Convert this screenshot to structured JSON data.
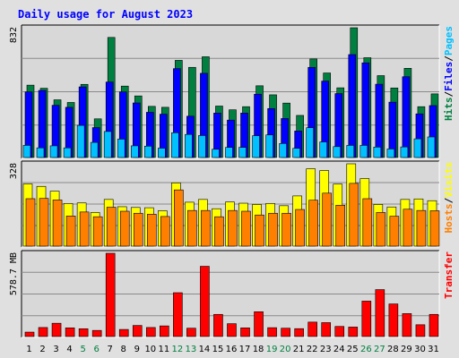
{
  "chart_data": {
    "title": "Daily usage for August 2023",
    "type": "bar",
    "categories": [
      "1",
      "2",
      "3",
      "4",
      "5",
      "6",
      "7",
      "8",
      "9",
      "10",
      "11",
      "12",
      "13",
      "14",
      "15",
      "16",
      "17",
      "18",
      "19",
      "20",
      "21",
      "22",
      "23",
      "24",
      "25",
      "26",
      "27",
      "28",
      "29",
      "30",
      "31"
    ],
    "weekend_days": [
      "5",
      "6",
      "12",
      "13",
      "19",
      "20",
      "26",
      "27"
    ],
    "panels": [
      {
        "id": "hits-files-pages",
        "ymax": 832,
        "ymax_label": "832",
        "side_label": {
          "parts": [
            {
              "text": "Hits",
              "color": "#008040"
            },
            {
              "text": "/",
              "color": "#000000"
            },
            {
              "text": "Files",
              "color": "#0000ff"
            },
            {
              "text": "/",
              "color": "#000000"
            },
            {
              "text": "Pages",
              "color": "#00c0ff"
            }
          ]
        },
        "series": [
          {
            "name": "Hits",
            "color": "#008040",
            "values": [
              464,
              444,
              370,
              353,
              469,
              248,
              770,
              458,
              395,
              328,
              322,
              623,
              578,
              646,
              330,
              306,
              326,
              460,
              402,
              349,
              270,
              632,
              542,
              447,
              832,
              640,
              525,
              446,
              572,
              326,
              408
            ]
          },
          {
            "name": "Files",
            "color": "#0000ff",
            "values": [
              421,
              430,
              335,
              322,
              453,
              192,
              484,
              421,
              350,
              290,
              278,
              570,
              265,
              540,
              285,
              240,
              285,
              406,
              314,
              250,
              170,
              578,
              490,
              410,
              660,
              607,
              470,
              355,
              518,
              280,
              333
            ]
          },
          {
            "name": "Pages",
            "color": "#00c0ff",
            "values": [
              78,
              62,
              75,
              62,
              206,
              97,
              167,
              118,
              75,
              73,
              60,
              159,
              148,
              141,
              53,
              65,
              65,
              140,
              145,
              90,
              59,
              191,
              100,
              70,
              78,
              78,
              67,
              55,
              68,
              120,
              132
            ]
          }
        ]
      },
      {
        "id": "visits-hosts",
        "ymax": 328,
        "ymax_label": "328",
        "side_label": {
          "parts": [
            {
              "text": "Hosts",
              "color": "#ff8000"
            },
            {
              "text": "/",
              "color": "#000000"
            },
            {
              "text": "Visits",
              "color": "#ffff00"
            }
          ]
        },
        "series": [
          {
            "name": "Visits",
            "color": "#ffff00",
            "values": [
              248,
              238,
              219,
              170,
              172,
              134,
              186,
              157,
              154,
              153,
              141,
              252,
              175,
              186,
              149,
              176,
              171,
              166,
              170,
              161,
              200,
              308,
              301,
              247,
              328,
              269,
              166,
              156,
              186,
              188,
              181
            ]
          },
          {
            "name": "Hosts",
            "color": "#ff8000",
            "values": [
              189,
              190,
              184,
              120,
              136,
              117,
              155,
              139,
              131,
              127,
              118,
              224,
              142,
              142,
              117,
              142,
              139,
              124,
              131,
              131,
              146,
              183,
              211,
              163,
              250,
              189,
              134,
              119,
              147,
              142,
              141
            ]
          }
        ]
      },
      {
        "id": "transfer",
        "ymax": 940,
        "ymax_label": "578.7 MB",
        "side_label": {
          "parts": [
            {
              "text": "Transfer",
              "color": "#ff0000"
            }
          ]
        },
        "series": [
          {
            "name": "Transfer",
            "color": "#ff0000",
            "values": [
              50,
              102,
              150,
              98,
              88,
              69,
              940,
              80,
              125,
              102,
              120,
              495,
              94,
              793,
              250,
              145,
              98,
              280,
              100,
              94,
              89,
              163,
              157,
              114,
              107,
              400,
              530,
              368,
              259,
              133,
              250
            ]
          }
        ]
      }
    ],
    "colors": {
      "background": "#e0e0e0",
      "plot_background": "#d8d8d8",
      "title": "#0000ff",
      "weekday_label": "#000000",
      "weekend_label": "#008040",
      "grid": "#8a8a8a",
      "border_light": "#ffffff",
      "border_dark": "#000000"
    }
  }
}
